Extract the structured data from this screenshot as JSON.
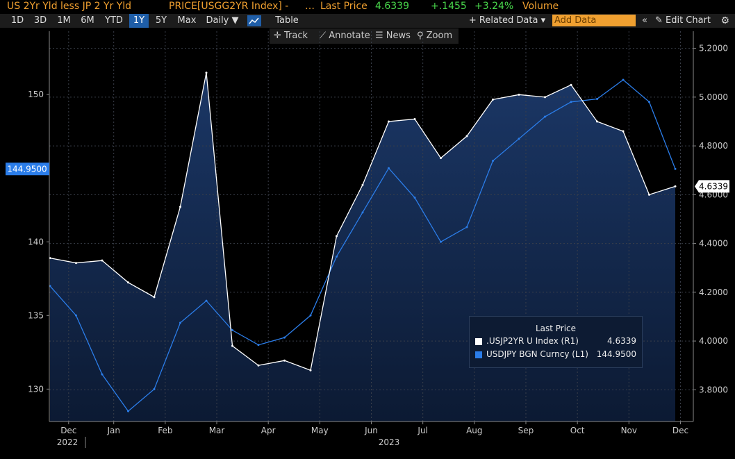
{
  "header": {
    "security": "US 2Yr Yld less JP 2 Yr Yld",
    "price_label": "PRICE[USGG2YR Index] -",
    "dots": "…",
    "last_price_label": "Last Price",
    "last_price": "4.6339",
    "change": "+.1455",
    "change_pct": "+3.24%",
    "volume_label": "Volume"
  },
  "toolbar": {
    "periods": [
      "1D",
      "3D",
      "1M",
      "6M",
      "YTD",
      "1Y",
      "5Y",
      "Max"
    ],
    "selected_period": "1Y",
    "frequency": "Daily ▼",
    "table": "Table",
    "related": "+ Related Data ▾",
    "add_placeholder": "Add Data",
    "collapse": "«",
    "edit_chart": "✎ Edit Chart",
    "settings": "⚙"
  },
  "subtoolbar": {
    "track": "✛ Track",
    "annotate": "⟋ Annotate",
    "news": "☰ News",
    "zoom": "⚲ Zoom"
  },
  "legend": {
    "header": "Last Price",
    "items": [
      {
        "name": ".USJP2YR U Index  (R1)",
        "value": "4.6339",
        "color": "#ffffff"
      },
      {
        "name": "USDJPY BGN Curncy  (L1)",
        "value": "144.9500",
        "color": "#2b7de9"
      }
    ]
  },
  "chart_data": {
    "type": "line",
    "title": "US 2Yr Yld less JP 2 Yr Yld",
    "x": [
      "Nov-27",
      "Dec-15",
      "Jan-01",
      "Jan-15",
      "Feb-01",
      "Feb-15",
      "Mar-01",
      "Mar-15",
      "Apr-01",
      "Apr-15",
      "May-01",
      "May-15",
      "Jun-01",
      "Jun-15",
      "Jul-01",
      "Jul-15",
      "Aug-01",
      "Aug-15",
      "Sep-01",
      "Sep-15",
      "Oct-01",
      "Oct-15",
      "Nov-01",
      "Nov-15",
      "Nov-27"
    ],
    "x_tick_labels": [
      "Dec",
      "Jan",
      "Feb",
      "Mar",
      "Apr",
      "May",
      "Jun",
      "Jul",
      "Aug",
      "Sep",
      "Oct",
      "Nov",
      "Dec"
    ],
    "x_year_labels": [
      "2022",
      "2023"
    ],
    "series": [
      {
        "name": ".USJP2YR U Index (R1)",
        "axis": "right",
        "values": [
          4.34,
          4.32,
          4.33,
          4.24,
          4.18,
          4.55,
          5.1,
          3.98,
          3.9,
          3.92,
          3.88,
          4.43,
          4.64,
          4.9,
          4.91,
          4.75,
          4.84,
          4.99,
          5.01,
          5.0,
          5.05,
          4.9,
          4.86,
          4.6,
          4.6339
        ]
      },
      {
        "name": "USDJPY BGN Curncy (L1)",
        "axis": "left",
        "values": [
          137.0,
          135.0,
          131.0,
          128.5,
          130.0,
          134.5,
          136.0,
          134.0,
          133.0,
          133.5,
          135.0,
          139.0,
          142.0,
          145.0,
          143.0,
          140.0,
          141.0,
          145.5,
          147.0,
          148.5,
          149.5,
          149.7,
          151.0,
          149.5,
          144.95
        ]
      }
    ],
    "left_axis": {
      "ticks": [
        130,
        135,
        140,
        150
      ],
      "ylim": [
        127.8,
        154.3
      ],
      "badge": "144.9500"
    },
    "right_axis": {
      "ticks": [
        "3.8000",
        "4.0000",
        "4.2000",
        "4.4000",
        "4.6000",
        "4.8000",
        "5.0000",
        "5.2000"
      ],
      "ylim": [
        3.67,
        5.27
      ],
      "badge": "4.6339"
    },
    "grid": true,
    "legend_position": "lower-right"
  }
}
